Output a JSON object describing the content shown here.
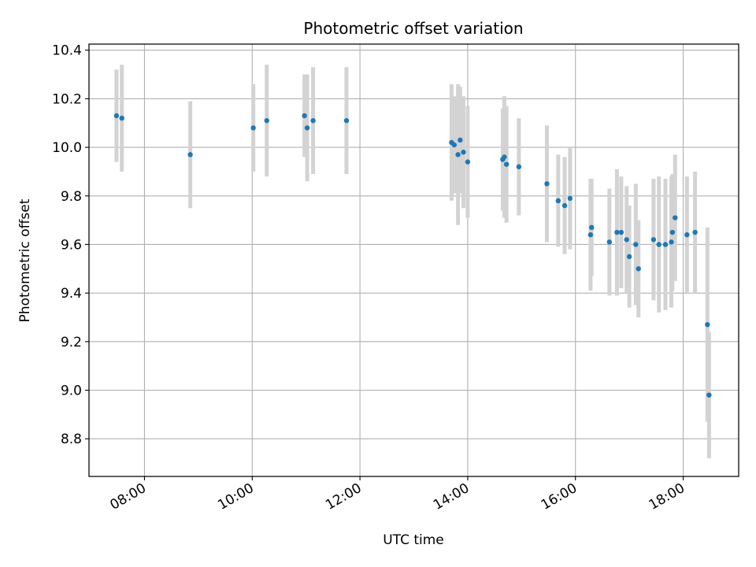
{
  "chart_data": {
    "type": "scatter",
    "title": "Photometric offset variation",
    "xlabel": "UTC time",
    "ylabel": "Photometric offset",
    "x_tick_labels": [
      "08:00",
      "10:00",
      "12:00",
      "14:00",
      "16:00",
      "18:00"
    ],
    "x_ticks_hours": [
      8,
      10,
      12,
      14,
      16,
      18
    ],
    "y_ticks": [
      8.8,
      9.0,
      9.2,
      9.4,
      9.6,
      9.8,
      10.0,
      10.2,
      10.4
    ],
    "y_tick_labels": [
      "8.8",
      "9.0",
      "9.2",
      "9.4",
      "9.6",
      "9.8",
      "10.0",
      "10.2",
      "10.4"
    ],
    "xlim_hours": [
      6.97,
      19.03
    ],
    "ylim": [
      8.645,
      10.425
    ],
    "grid": true,
    "colors": {
      "point": "#1f77b4",
      "errorbar": "#d3d3d3",
      "grid": "#b0b0b0"
    },
    "series": [
      {
        "x_hours": [
          7.48,
          7.58,
          8.85,
          10.02,
          10.27,
          10.97,
          11.02,
          11.13,
          11.75,
          13.7,
          13.75,
          13.82,
          13.86,
          13.92,
          14.0,
          14.65,
          14.68,
          14.72,
          14.95,
          15.47,
          15.68,
          15.8,
          15.9,
          16.28,
          16.3,
          16.63,
          16.77,
          16.85,
          16.95,
          17.0,
          17.12,
          17.17,
          17.45,
          17.55,
          17.67,
          17.78,
          17.8,
          17.85,
          18.07,
          18.22,
          18.45,
          18.48
        ],
        "y": [
          10.13,
          10.12,
          9.97,
          10.08,
          10.11,
          10.13,
          10.08,
          10.11,
          10.11,
          10.02,
          10.01,
          9.97,
          10.03,
          9.98,
          9.94,
          9.95,
          9.96,
          9.93,
          9.92,
          9.85,
          9.78,
          9.76,
          9.79,
          9.64,
          9.67,
          9.61,
          9.65,
          9.65,
          9.62,
          9.55,
          9.6,
          9.5,
          9.62,
          9.6,
          9.6,
          9.61,
          9.65,
          9.71,
          9.64,
          9.65,
          9.27,
          8.98
        ],
        "yerr": [
          0.19,
          0.22,
          0.22,
          0.18,
          0.23,
          0.17,
          0.22,
          0.22,
          0.22,
          0.24,
          0.2,
          0.29,
          0.22,
          0.23,
          0.23,
          0.21,
          0.25,
          0.24,
          0.2,
          0.24,
          0.19,
          0.2,
          0.21,
          0.23,
          0.2,
          0.22,
          0.26,
          0.23,
          0.22,
          0.21,
          0.25,
          0.2,
          0.25,
          0.28,
          0.27,
          0.27,
          0.24,
          0.26,
          0.24,
          0.25,
          0.4,
          0.26
        ]
      }
    ]
  }
}
